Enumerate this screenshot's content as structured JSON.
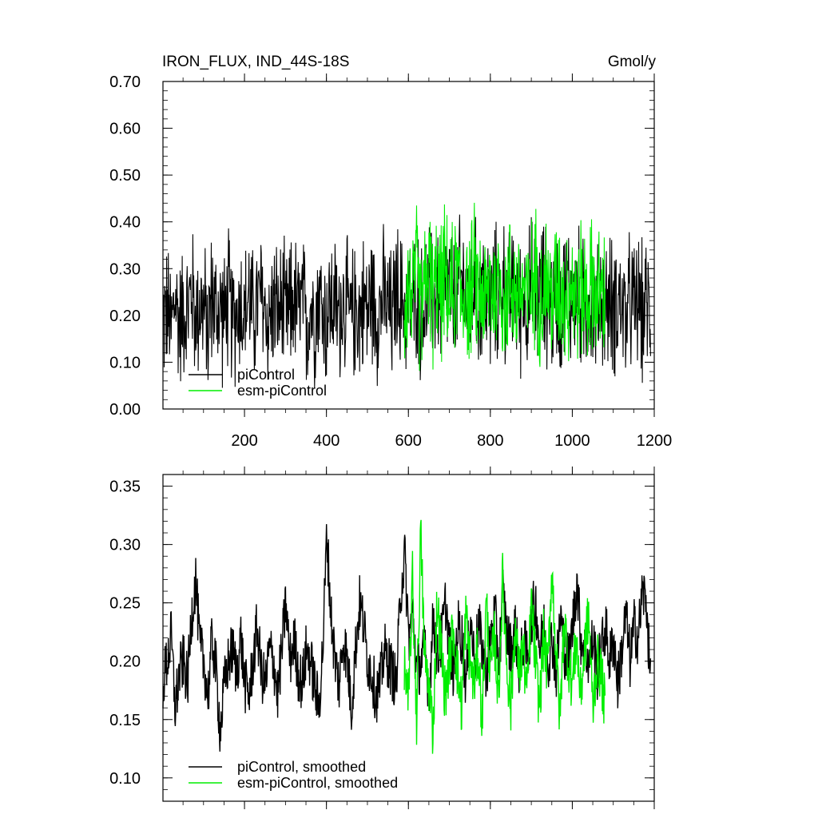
{
  "chart_data": [
    {
      "type": "line",
      "title_left": "IRON_FLUX, IND_44S-18S",
      "title_right": "Gmol/y",
      "xlim": [
        1,
        1200
      ],
      "ylim": [
        0.0,
        0.7
      ],
      "xticks": [
        200,
        400,
        600,
        800,
        1000,
        1200
      ],
      "yticks": [
        0.0,
        0.1,
        0.2,
        0.3,
        0.4,
        0.5,
        0.6,
        0.7
      ],
      "ytick_labels": [
        "0.00",
        "0.10",
        "0.20",
        "0.30",
        "0.40",
        "0.50",
        "0.60",
        "0.70"
      ],
      "legend_position": "bottom-left",
      "series": [
        {
          "name": "piControl",
          "color": "#000000",
          "x_start": 1,
          "x_step": 10,
          "values": [
            0.19,
            0.21,
            0.17,
            0.24,
            0.18,
            0.22,
            0.2,
            0.26,
            0.19,
            0.23,
            0.21,
            0.17,
            0.25,
            0.2,
            0.22,
            0.19,
            0.24,
            0.18,
            0.21,
            0.23,
            0.2,
            0.25,
            0.19,
            0.22,
            0.24,
            0.21,
            0.18,
            0.23,
            0.2,
            0.22,
            0.19,
            0.21,
            0.24,
            0.2,
            0.23,
            0.18,
            0.22,
            0.2,
            0.25,
            0.21,
            0.19,
            0.23,
            0.22,
            0.2,
            0.24,
            0.21,
            0.19,
            0.22,
            0.2,
            0.23,
            0.21,
            0.25,
            0.2,
            0.22,
            0.24,
            0.21,
            0.19,
            0.26,
            0.23,
            0.22,
            0.24,
            0.21,
            0.26,
            0.2,
            0.23,
            0.25,
            0.22,
            0.27,
            0.21,
            0.24,
            0.26,
            0.22,
            0.25,
            0.28,
            0.23,
            0.24,
            0.27,
            0.22,
            0.26,
            0.24,
            0.21,
            0.25,
            0.23,
            0.27,
            0.22,
            0.24,
            0.26,
            0.21,
            0.25,
            0.23,
            0.27,
            0.22,
            0.24,
            0.26,
            0.23,
            0.21,
            0.25,
            0.22,
            0.24,
            0.26,
            0.22,
            0.25,
            0.23,
            0.21,
            0.24,
            0.22,
            0.2,
            0.25,
            0.22,
            0.23,
            0.21,
            0.24,
            0.22,
            0.19,
            0.23,
            0.21,
            0.24,
            0.2,
            0.22,
            0.21
          ]
        },
        {
          "name": "esm-piControl",
          "color": "#00ee00",
          "x_start": 590,
          "x_step": 10,
          "values": [
            0.22,
            0.27,
            0.24,
            0.29,
            0.21,
            0.26,
            0.3,
            0.23,
            0.27,
            0.25,
            0.29,
            0.22,
            0.26,
            0.28,
            0.24,
            0.27,
            0.23,
            0.29,
            0.25,
            0.26,
            0.22,
            0.28,
            0.24,
            0.27,
            0.25,
            0.23,
            0.28,
            0.26,
            0.24,
            0.27,
            0.22,
            0.26,
            0.29,
            0.24,
            0.25,
            0.28,
            0.23,
            0.26,
            0.27,
            0.24,
            0.25,
            0.28,
            0.22,
            0.26,
            0.25,
            0.24,
            0.27,
            0.23,
            0.25,
            0.22
          ]
        }
      ]
    },
    {
      "type": "line",
      "xlim": [
        1,
        1200
      ],
      "ylim": [
        0.08,
        0.36
      ],
      "xticks": [
        200,
        400,
        600,
        800,
        1000,
        1200
      ],
      "yticks": [
        0.1,
        0.15,
        0.2,
        0.25,
        0.3,
        0.35
      ],
      "ytick_labels": [
        "0.10",
        "0.15",
        "0.20",
        "0.25",
        "0.30",
        "0.35"
      ],
      "legend_position": "bottom-left",
      "series": [
        {
          "name": "piControl, smoothed",
          "color": "#000000",
          "x_start": 1,
          "x_step": 10,
          "values": [
            0.18,
            0.2,
            0.22,
            0.16,
            0.19,
            0.2,
            0.18,
            0.24,
            0.27,
            0.21,
            0.2,
            0.17,
            0.22,
            0.19,
            0.14,
            0.18,
            0.2,
            0.21,
            0.19,
            0.22,
            0.18,
            0.17,
            0.2,
            0.23,
            0.19,
            0.18,
            0.21,
            0.2,
            0.17,
            0.21,
            0.25,
            0.2,
            0.22,
            0.19,
            0.18,
            0.21,
            0.2,
            0.18,
            0.16,
            0.21,
            0.31,
            0.24,
            0.2,
            0.18,
            0.22,
            0.2,
            0.16,
            0.21,
            0.25,
            0.23,
            0.2,
            0.19,
            0.17,
            0.18,
            0.21,
            0.2,
            0.19,
            0.18,
            0.26,
            0.29,
            0.22,
            0.24,
            0.19,
            0.2,
            0.21,
            0.17,
            0.24,
            0.2,
            0.22,
            0.25,
            0.21,
            0.19,
            0.23,
            0.22,
            0.18,
            0.24,
            0.2,
            0.23,
            0.21,
            0.19,
            0.22,
            0.24,
            0.2,
            0.26,
            0.22,
            0.21,
            0.23,
            0.19,
            0.22,
            0.2,
            0.24,
            0.25,
            0.21,
            0.23,
            0.2,
            0.22,
            0.19,
            0.24,
            0.21,
            0.2,
            0.23,
            0.27,
            0.22,
            0.21,
            0.2,
            0.22,
            0.19,
            0.21,
            0.23,
            0.2,
            0.22,
            0.18,
            0.21,
            0.24,
            0.2,
            0.23,
            0.22,
            0.26,
            0.25,
            0.18
          ]
        },
        {
          "name": "esm-piControl, smoothed",
          "color": "#00ee00",
          "x_start": 590,
          "x_step": 10,
          "values": [
            0.2,
            0.16,
            0.27,
            0.15,
            0.31,
            0.2,
            0.18,
            0.14,
            0.25,
            0.21,
            0.17,
            0.2,
            0.23,
            0.19,
            0.16,
            0.24,
            0.2,
            0.18,
            0.21,
            0.15,
            0.25,
            0.19,
            0.22,
            0.17,
            0.27,
            0.2,
            0.16,
            0.23,
            0.19,
            0.21,
            0.17,
            0.25,
            0.2,
            0.16,
            0.22,
            0.19,
            0.28,
            0.21,
            0.15,
            0.24,
            0.2,
            0.18,
            0.22,
            0.17,
            0.21,
            0.24,
            0.16,
            0.2,
            0.19,
            0.16
          ]
        }
      ]
    }
  ]
}
